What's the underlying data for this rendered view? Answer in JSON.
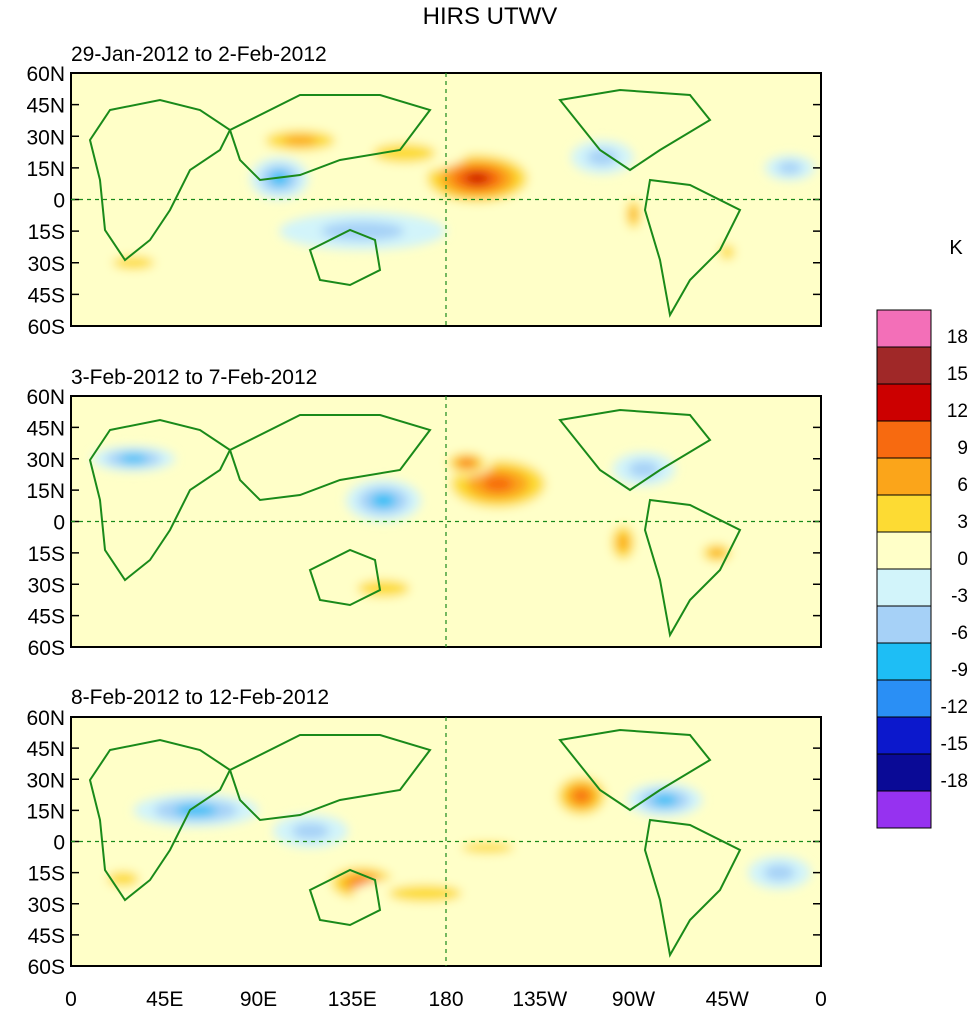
{
  "figure": {
    "title": "HIRS UTWV",
    "unit_label": "K"
  },
  "panels": [
    {
      "period": "29-Jan-2012 to 2-Feb-2012"
    },
    {
      "period": "3-Feb-2012 to 7-Feb-2012"
    },
    {
      "period": "8-Feb-2012 to 12-Feb-2012"
    }
  ],
  "axes": {
    "lat_labels": [
      "60N",
      "45N",
      "30N",
      "15N",
      "0",
      "15S",
      "30S",
      "45S",
      "60S"
    ],
    "lat_values": [
      60,
      45,
      30,
      15,
      0,
      -15,
      -30,
      -45,
      -60
    ],
    "lon_labels": [
      "0",
      "45E",
      "90E",
      "135E",
      "180",
      "135W",
      "90W",
      "45W",
      "0"
    ],
    "lon_values": [
      0,
      45,
      90,
      135,
      180,
      225,
      270,
      315,
      360
    ]
  },
  "colorbar": {
    "tick_labels": [
      "18",
      "15",
      "12",
      "9",
      "6",
      "3",
      "0",
      "-3",
      "-6",
      "-9",
      "-12",
      "-15",
      "-18"
    ],
    "colors_top_to_bottom": [
      "#f36fb8",
      "#a02828",
      "#cc0000",
      "#f76a10",
      "#fba51a",
      "#fddb33",
      "#ffffc8",
      "#d2f4fa",
      "#a6d1f7",
      "#1ebef5",
      "#2a8ff5",
      "#0c18cc",
      "#0a0a96",
      "#9632f0"
    ]
  },
  "chart_data": {
    "type": "heatmap",
    "title": "HIRS UTWV",
    "units": "K",
    "xlabel": "Longitude",
    "ylabel": "Latitude",
    "xlim": [
      0,
      360
    ],
    "ylim": [
      -60,
      60
    ],
    "levels": [
      -18,
      -15,
      -12,
      -9,
      -6,
      -3,
      0,
      3,
      6,
      9,
      12,
      15,
      18
    ],
    "panels": [
      {
        "label": "29-Jan-2012 to 2-Feb-2012",
        "features": [
          {
            "lon": 195,
            "lat": 10,
            "rx": 30,
            "ry": 14,
            "val": 16
          },
          {
            "lon": 160,
            "lat": 22,
            "rx": 30,
            "ry": 9,
            "val": 8
          },
          {
            "lon": 110,
            "lat": 28,
            "rx": 25,
            "ry": 7,
            "val": 9
          },
          {
            "lon": 270,
            "lat": -7,
            "rx": 5,
            "ry": 10,
            "val": 11
          },
          {
            "lon": 315,
            "lat": -25,
            "rx": 7,
            "ry": 7,
            "val": 8
          },
          {
            "lon": 100,
            "lat": 10,
            "rx": 14,
            "ry": 10,
            "val": -10
          },
          {
            "lon": 140,
            "lat": -15,
            "rx": 40,
            "ry": 9,
            "val": -7
          },
          {
            "lon": 255,
            "lat": 20,
            "rx": 15,
            "ry": 8,
            "val": -8
          },
          {
            "lon": 30,
            "lat": -30,
            "rx": 20,
            "ry": 6,
            "val": 7
          },
          {
            "lon": 345,
            "lat": 15,
            "rx": 12,
            "ry": 6,
            "val": -7
          }
        ]
      },
      {
        "label": "3-Feb-2012 to 7-Feb-2012",
        "features": [
          {
            "lon": 205,
            "lat": 18,
            "rx": 30,
            "ry": 15,
            "val": 13
          },
          {
            "lon": 190,
            "lat": 28,
            "rx": 12,
            "ry": 6,
            "val": 12
          },
          {
            "lon": 150,
            "lat": -32,
            "rx": 25,
            "ry": 8,
            "val": 6
          },
          {
            "lon": 150,
            "lat": 10,
            "rx": 18,
            "ry": 10,
            "val": -9
          },
          {
            "lon": 265,
            "lat": -10,
            "rx": 8,
            "ry": 12,
            "val": 10
          },
          {
            "lon": 310,
            "lat": -15,
            "rx": 10,
            "ry": 6,
            "val": 10
          },
          {
            "lon": 30,
            "lat": 30,
            "rx": 20,
            "ry": 6,
            "val": -10
          },
          {
            "lon": 275,
            "lat": 25,
            "rx": 15,
            "ry": 8,
            "val": -7
          },
          {
            "lon": 20,
            "lat": -15,
            "rx": 15,
            "ry": 10,
            "val": 5
          }
        ]
      },
      {
        "label": "8-Feb-2012 to 12-Feb-2012",
        "features": [
          {
            "lon": 245,
            "lat": 22,
            "rx": 15,
            "ry": 12,
            "val": 14
          },
          {
            "lon": 140,
            "lat": -20,
            "rx": 20,
            "ry": 10,
            "val": 13
          },
          {
            "lon": 170,
            "lat": -25,
            "rx": 35,
            "ry": 8,
            "val": 8
          },
          {
            "lon": 200,
            "lat": -3,
            "rx": 25,
            "ry": 5,
            "val": 8
          },
          {
            "lon": 60,
            "lat": 15,
            "rx": 30,
            "ry": 8,
            "val": -9
          },
          {
            "lon": 115,
            "lat": 5,
            "rx": 18,
            "ry": 8,
            "val": -7
          },
          {
            "lon": 285,
            "lat": 20,
            "rx": 18,
            "ry": 8,
            "val": -9
          },
          {
            "lon": 340,
            "lat": -15,
            "rx": 15,
            "ry": 8,
            "val": -8
          },
          {
            "lon": 25,
            "lat": -18,
            "rx": 15,
            "ry": 7,
            "val": 6
          }
        ]
      }
    ]
  }
}
